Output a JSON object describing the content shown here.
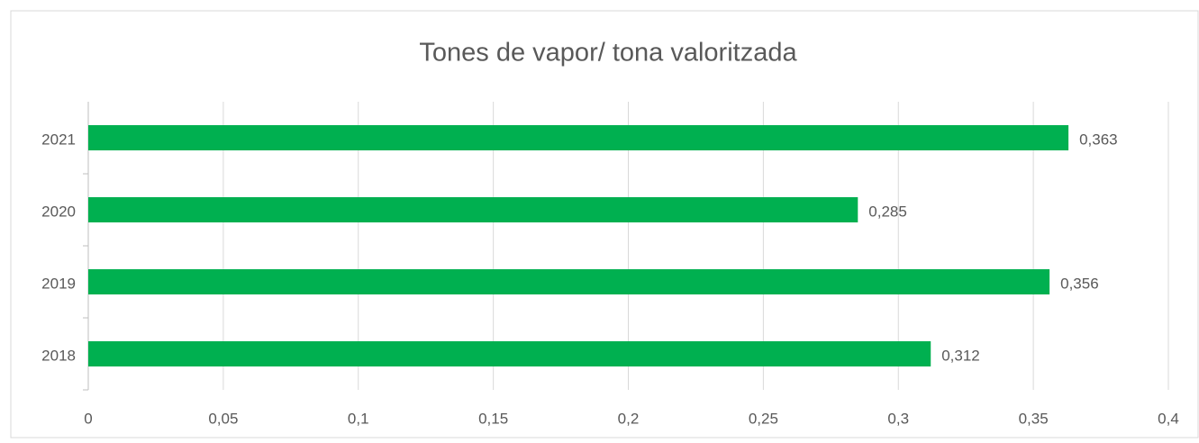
{
  "chart_data": {
    "type": "bar",
    "orientation": "horizontal",
    "title": "Tones de vapor/ tona valoritzada",
    "categories": [
      "2018",
      "2019",
      "2020",
      "2021"
    ],
    "values": [
      0.312,
      0.356,
      0.285,
      0.363
    ],
    "value_labels": [
      "0,312",
      "0,356",
      "0,285",
      "0,363"
    ],
    "color": "#00b050",
    "xlim": [
      0,
      0.4
    ],
    "xticks": [
      0,
      {
        "value": 0.05,
        "label": "0,05"
      },
      {
        "value": 0.1,
        "label": "0,1"
      },
      {
        "value": 0.15,
        "label": "0,15"
      },
      {
        "value": 0.2,
        "label": "0,2"
      },
      {
        "value": 0.25,
        "label": "0,25"
      },
      {
        "value": 0.3,
        "label": "0,3"
      },
      {
        "value": 0.35,
        "label": "0,35"
      },
      {
        "value": 0.4,
        "label": "0,4"
      }
    ],
    "grid": true
  }
}
